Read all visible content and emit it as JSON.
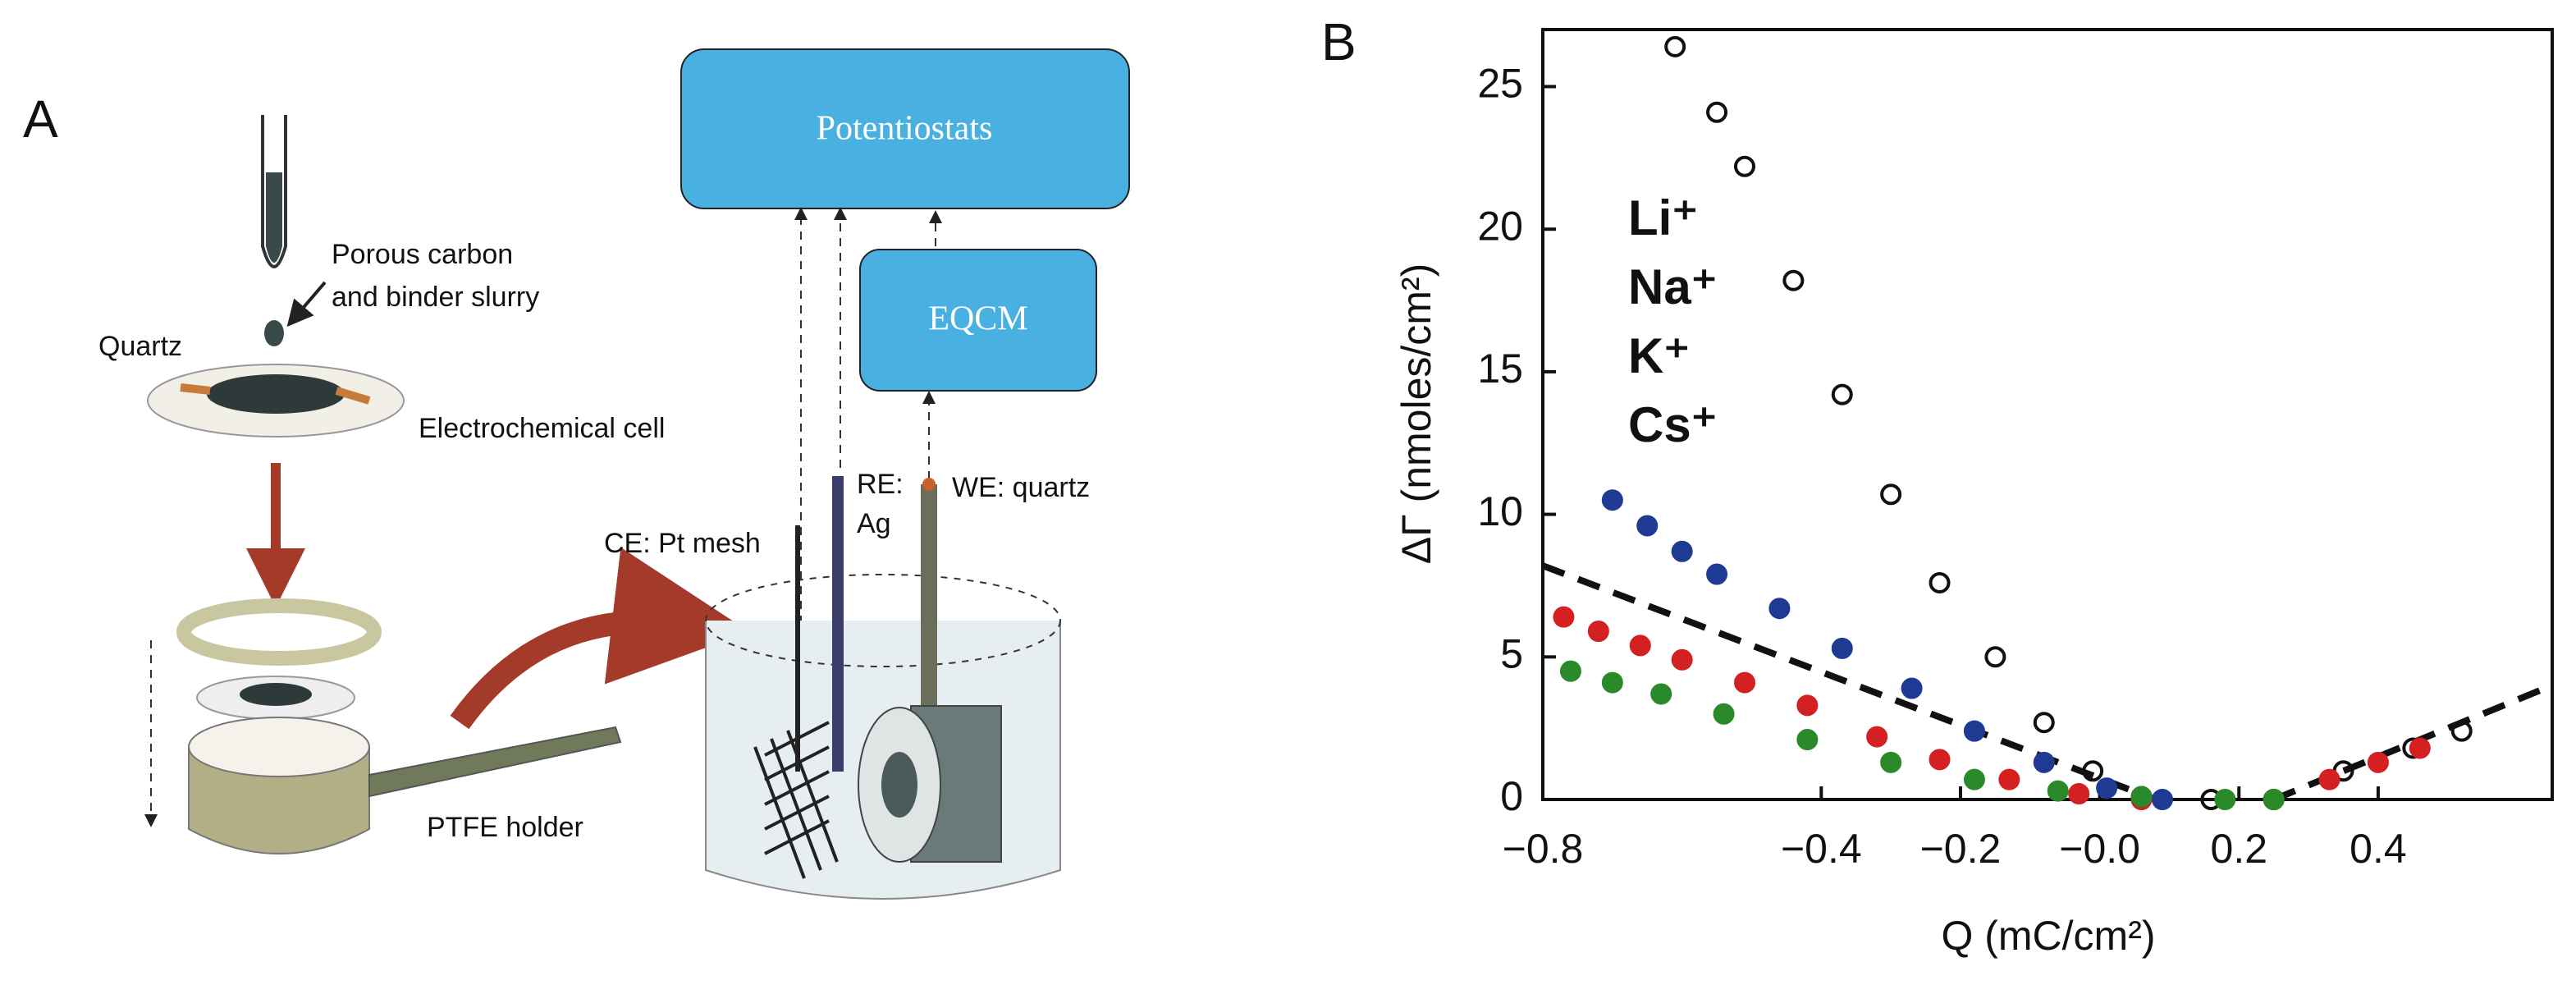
{
  "panel_a": {
    "label": "A",
    "slurry_label": [
      "Porous carbon",
      "and binder slurry"
    ],
    "quartz_label": "Quartz",
    "cell_label": "Electrochemical cell",
    "holder_label": "PTFE holder",
    "potentiostat_label": "Potentiostats",
    "eqcm_label": "EQCM",
    "re_label": [
      "RE:",
      "Ag"
    ],
    "we_label": "WE: quartz",
    "ce_label": "CE: Pt mesh"
  },
  "chart_data": {
    "type": "scatter",
    "panel_label": "B",
    "xlabel": "Q (mC/cm²)",
    "ylabel": "ΔΓ (nmoles/cm²)",
    "xlim": [
      -0.8,
      0.65
    ],
    "ylim": [
      0,
      27
    ],
    "xticks": [
      {
        "value": -0.8,
        "label": "−0.8"
      },
      {
        "value": -0.4,
        "label": "−0.4"
      },
      {
        "value": -0.2,
        "label": "−0.2"
      },
      {
        "value": 0,
        "label": "−0.0"
      },
      0.2,
      0.4
    ],
    "yticks": [
      0,
      5,
      10,
      15,
      20,
      25
    ],
    "legend": "upper left",
    "series": [
      {
        "name": "Li⁺",
        "color": "#111111",
        "marker": "open",
        "x": [
          -0.61,
          -0.55,
          -0.51,
          -0.44,
          -0.37,
          -0.3,
          -0.23,
          -0.15,
          -0.08,
          -0.01,
          0.06,
          0.16,
          0.25,
          0.35,
          0.45,
          0.52
        ],
        "values": [
          26.4,
          24.1,
          22.2,
          18.2,
          14.2,
          10.7,
          7.6,
          5.0,
          2.7,
          1.0,
          0.1,
          0,
          0,
          1.0,
          1.8,
          2.4
        ]
      },
      {
        "name": "Na⁺",
        "color": "#1f3a93",
        "marker": "filled",
        "x": [
          -0.7,
          -0.65,
          -0.6,
          -0.55,
          -0.46,
          -0.37,
          -0.27,
          -0.18,
          -0.08,
          0.01,
          0.09
        ],
        "values": [
          10.5,
          9.6,
          8.7,
          7.9,
          6.7,
          5.3,
          3.9,
          2.4,
          1.3,
          0.4,
          0
        ]
      },
      {
        "name": "K⁺",
        "color": "#d42020",
        "marker": "filled",
        "x": [
          -0.77,
          -0.72,
          -0.66,
          -0.6,
          -0.51,
          -0.42,
          -0.32,
          -0.23,
          -0.13,
          -0.03,
          0.06,
          0.25,
          0.33,
          0.4,
          0.46
        ],
        "values": [
          6.4,
          5.9,
          5.4,
          4.9,
          4.1,
          3.3,
          2.2,
          1.4,
          0.7,
          0.2,
          0,
          0,
          0.7,
          1.3,
          1.8
        ]
      },
      {
        "name": "Cs⁺",
        "color": "#2a8a2a",
        "marker": "filled",
        "x": [
          -0.76,
          -0.7,
          -0.63,
          -0.54,
          -0.42,
          -0.3,
          -0.18,
          -0.06,
          0.06,
          0.18,
          0.25
        ],
        "values": [
          4.5,
          4.1,
          3.7,
          3.0,
          2.1,
          1.3,
          0.7,
          0.3,
          0.1,
          0,
          0
        ]
      }
    ],
    "fit_lines": [
      {
        "color": "#111111",
        "x": [
          -0.8,
          0.08
        ],
        "values": [
          8.2,
          0
        ]
      },
      {
        "color": "#111111",
        "x": [
          0.25,
          0.65
        ],
        "values": [
          0,
          4.0
        ]
      }
    ]
  }
}
